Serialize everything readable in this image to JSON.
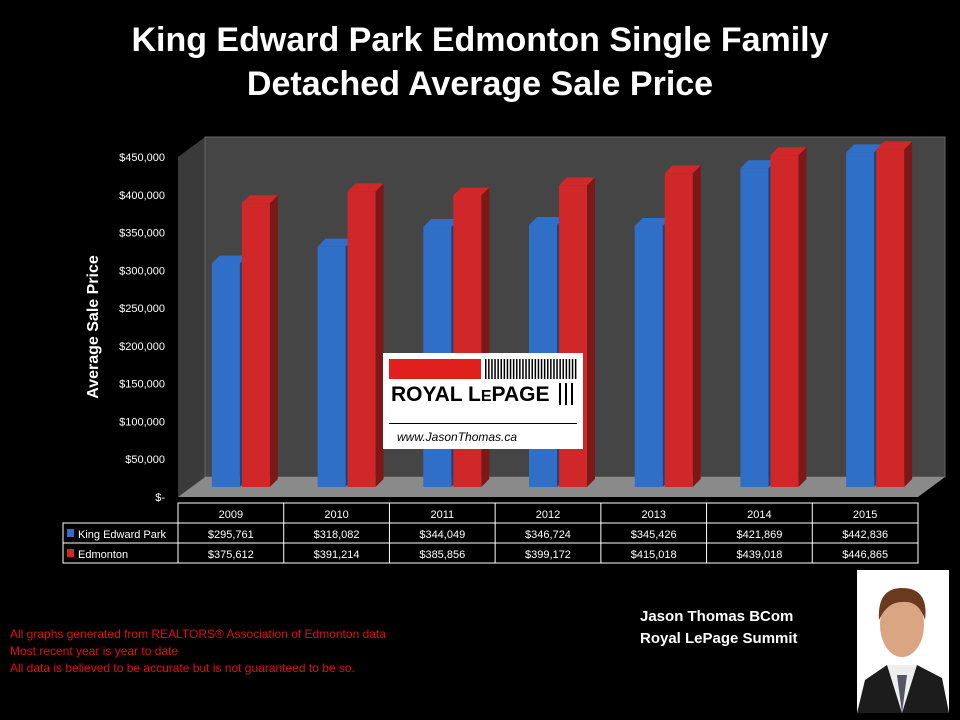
{
  "chart_data": {
    "type": "bar",
    "title": "King Edward Park Edmonton Single Family Detached Average Sale Price",
    "title_lines": [
      "King Edward Park Edmonton Single Family",
      "Detached Average Sale Price"
    ],
    "ylabel": "Average Sale Price",
    "xlabel": "",
    "ylim": [
      0,
      450000
    ],
    "yticks": [
      0,
      50000,
      100000,
      150000,
      200000,
      250000,
      300000,
      350000,
      400000,
      450000
    ],
    "ytick_labels": [
      "$-",
      "$50,000",
      "$100,000",
      "$150,000",
      "$200,000",
      "$250,000",
      "$300,000",
      "$350,000",
      "$400,000",
      "$450,000"
    ],
    "categories": [
      "2009",
      "2010",
      "2011",
      "2012",
      "2013",
      "2014",
      "2015"
    ],
    "series": [
      {
        "name": "King Edward Park",
        "color": "#2f6fc8",
        "values": [
          295761,
          318082,
          344049,
          346724,
          345426,
          421869,
          442836
        ],
        "labels": [
          "$295,761",
          "$318,082",
          "$344,049",
          "$346,724",
          "$345,426",
          "$421,869",
          "$442,836"
        ]
      },
      {
        "name": "Edmonton",
        "color": "#d02828",
        "values": [
          375612,
          391214,
          385856,
          399172,
          415018,
          439018,
          446865
        ],
        "labels": [
          "$375,612",
          "$391,214",
          "$385,856",
          "$399,172",
          "$415,018",
          "$439,018",
          "$446,865"
        ]
      }
    ],
    "grid": false,
    "legend": "data-table"
  },
  "logo": {
    "brand": "ROYAL LEPAGE",
    "url": "www.JasonThomas.ca"
  },
  "notes": [
    "All graphs generated from REALTORS® Association of Edmonton data",
    "Most recent year is year to date",
    "All data is believed to be accurate but is not guaranteed to be so."
  ],
  "agent": {
    "name": "Jason Thomas BCom",
    "company": "Royal LePage Summit"
  }
}
